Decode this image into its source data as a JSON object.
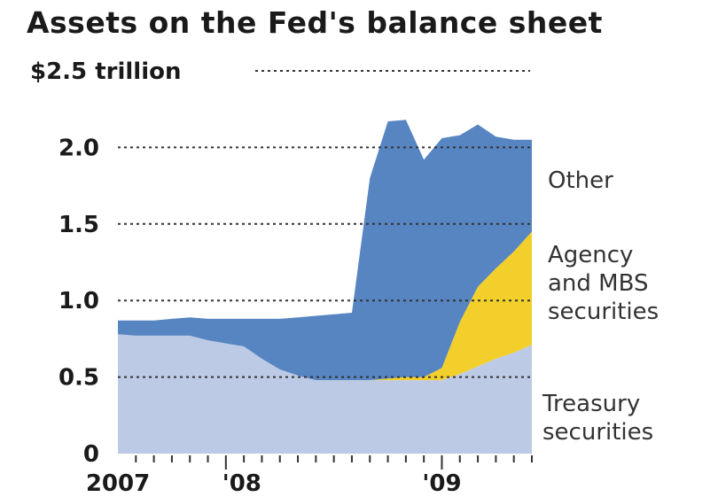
{
  "chart_data": {
    "type": "area",
    "stacked": true,
    "title": "Assets on the Fed's balance sheet",
    "unit_label": "$2.5 trillion",
    "y_ticks": [
      "0",
      "0.5",
      "1.0",
      "1.5",
      "2.0"
    ],
    "ylim": [
      0,
      2.5
    ],
    "xlim": [
      "2007-07",
      "2009-06"
    ],
    "x_tick_labels": [
      {
        "label": "2007",
        "date": "2007-07"
      },
      {
        "label": "'08",
        "date": "2008-01"
      },
      {
        "label": "'09",
        "date": "2009-01"
      }
    ],
    "grid": "dotted horizontal",
    "x": [
      "2007-07",
      "2007-08",
      "2007-09",
      "2007-10",
      "2007-11",
      "2007-12",
      "2008-01",
      "2008-02",
      "2008-03",
      "2008-04",
      "2008-05",
      "2008-06",
      "2008-07",
      "2008-08",
      "2008-09",
      "2008-10",
      "2008-11",
      "2008-12",
      "2009-01",
      "2009-02",
      "2009-03",
      "2009-04",
      "2009-05",
      "2009-06"
    ],
    "series": [
      {
        "name": "Treasury securities",
        "color": "#bccae6",
        "values": [
          0.78,
          0.77,
          0.77,
          0.77,
          0.77,
          0.74,
          0.72,
          0.7,
          0.62,
          0.55,
          0.51,
          0.48,
          0.48,
          0.48,
          0.48,
          0.48,
          0.48,
          0.48,
          0.48,
          0.52,
          0.57,
          0.62,
          0.66,
          0.71
        ]
      },
      {
        "name": "Agency and MBS securities",
        "color": "#f2cf2a",
        "values": [
          0,
          0,
          0,
          0,
          0,
          0,
          0,
          0,
          0,
          0,
          0,
          0,
          0,
          0,
          0,
          0.01,
          0.02,
          0.02,
          0.08,
          0.34,
          0.52,
          0.59,
          0.66,
          0.74
        ]
      },
      {
        "name": "Other",
        "color": "#5685c1",
        "values": [
          0.09,
          0.1,
          0.1,
          0.11,
          0.12,
          0.14,
          0.16,
          0.18,
          0.26,
          0.33,
          0.38,
          0.42,
          0.43,
          0.44,
          1.32,
          1.68,
          1.68,
          1.42,
          1.5,
          1.22,
          1.06,
          0.86,
          0.73,
          0.6
        ]
      }
    ]
  }
}
